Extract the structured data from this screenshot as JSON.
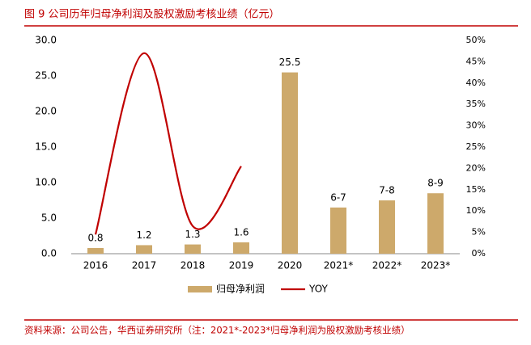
{
  "chart_data": {
    "type": "bar",
    "title": "图 9 公司历年归母净利润及股权激励考核业绩（亿元）",
    "source": "资料来源：公司公告，华西证券研究所（注：2021*-2023*归母净利润为股权激励考核业绩）",
    "categories": [
      "2016",
      "2017",
      "2018",
      "2019",
      "2020",
      "2021*",
      "2022*",
      "2023*"
    ],
    "series": [
      {
        "name": "归母净利润",
        "type": "bar",
        "color": "#CDA96B",
        "values": [
          0.8,
          1.2,
          1.3,
          1.6,
          25.5,
          6.5,
          7.5,
          8.5
        ],
        "value_labels": [
          "0.8",
          "1.2",
          "1.3",
          "1.6",
          "25.5",
          "6-7",
          "7-8",
          "8-9"
        ]
      },
      {
        "name": "YOY",
        "type": "line",
        "axis": "y2",
        "color": "#C00000",
        "values": [
          4.5,
          47,
          6.5,
          20.5,
          null,
          null,
          null,
          null
        ]
      }
    ],
    "ylim": [
      0,
      30
    ],
    "yticks": [
      {
        "value": 0,
        "label": "0.0"
      },
      {
        "value": 5,
        "label": "5.0"
      },
      {
        "value": 10,
        "label": "10.0"
      },
      {
        "value": 15,
        "label": "15.0"
      },
      {
        "value": 20,
        "label": "20.0"
      },
      {
        "value": 25,
        "label": "25.0"
      },
      {
        "value": 30,
        "label": "30.0"
      }
    ],
    "y2lim": [
      0,
      50
    ],
    "y2ticks": [
      {
        "value": 0,
        "label": "0%"
      },
      {
        "value": 5,
        "label": "5%"
      },
      {
        "value": 10,
        "label": "10%"
      },
      {
        "value": 15,
        "label": "15%"
      },
      {
        "value": 20,
        "label": "20%"
      },
      {
        "value": 25,
        "label": "25%"
      },
      {
        "value": 30,
        "label": "30%"
      },
      {
        "value": 35,
        "label": "35%"
      },
      {
        "value": 40,
        "label": "40%"
      },
      {
        "value": 45,
        "label": "45%"
      },
      {
        "value": 50,
        "label": "50%"
      }
    ],
    "legend": "bottom"
  }
}
